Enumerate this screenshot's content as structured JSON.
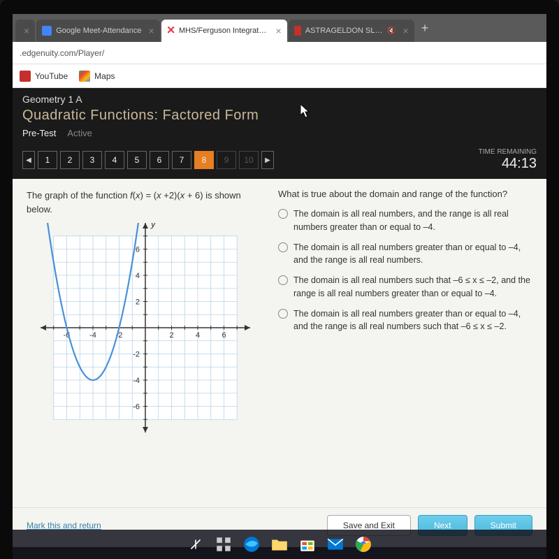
{
  "browser": {
    "tabs": [
      {
        "label": "Google Meet-Attendance",
        "icon_bg": "#4285f4",
        "active": false
      },
      {
        "label": "MHS/Ferguson Integrated Geom",
        "icon_bg": "#ffffff",
        "active": true
      },
      {
        "label": "ASTRAGELDON SLIME & LEV",
        "icon_bg": "#c4302b",
        "active": false
      }
    ],
    "url": ".edgenuity.com/Player/",
    "bookmarks": [
      {
        "label": "YouTube",
        "icon_bg": "#c4302b"
      },
      {
        "label": "Maps",
        "icon_bg": "#34a853"
      }
    ]
  },
  "header": {
    "course": "Geometry 1 A",
    "lesson": "Quadratic Functions: Factored Form",
    "status_primary": "Pre-Test",
    "status_secondary": "Active"
  },
  "nav": {
    "questions": [
      "1",
      "2",
      "3",
      "4",
      "5",
      "6",
      "7",
      "8",
      "9",
      "10"
    ],
    "current": 8,
    "disabled_from": 9,
    "timer_label": "TIME REMAINING",
    "timer_value": "44:13"
  },
  "question": {
    "stem_pre": "The graph of the function ",
    "stem_fx": "f(x) = (x +2)(x + 6)",
    "stem_post": " is shown below.",
    "prompt": "What is true about the domain and range of the function?",
    "options": [
      "The domain is all real numbers, and the range is all real numbers greater than or equal to –4.",
      "The domain is all real numbers greater than or equal to –4, and the range is all real numbers.",
      "The domain is all real numbers such that –6 ≤ x ≤ –2, and the range is all real numbers greater than or equal to –4.",
      "The domain is all real numbers greater than or equal to –4, and the range is all real numbers such that –6 ≤ x ≤ –2."
    ]
  },
  "graph": {
    "xlim": [
      -8,
      8
    ],
    "ylim": [
      -8,
      8
    ],
    "grid_color": "#b8d4e8",
    "axis_color": "#333333",
    "curve_color": "#4a90d9",
    "curve_width": 2.2,
    "background": "#ffffff",
    "xticks": [
      -6,
      -4,
      -2,
      2,
      4,
      6
    ],
    "yticks": [
      -6,
      -4,
      -2,
      2,
      4,
      6
    ],
    "tick_fontsize": 11,
    "xlabel": "x",
    "ylabel": "y",
    "vertex": [
      -4,
      -4
    ],
    "roots": [
      -6,
      -2
    ]
  },
  "footer": {
    "mark_link": "Mark this and return",
    "save": "Save and Exit",
    "next": "Next",
    "submit": "Submit"
  },
  "colors": {
    "accent_orange": "#e67e22",
    "dark_bg": "#1a1a1a",
    "content_bg": "#f4f4f0",
    "teal_btn": "#4bb8d9"
  }
}
